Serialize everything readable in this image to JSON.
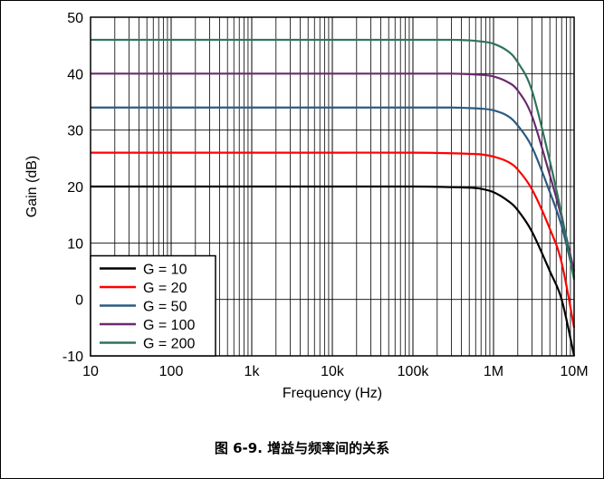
{
  "caption": "图 6-9. 增益与频率间的关系",
  "chart_data": {
    "type": "line",
    "xlabel": "Frequency (Hz)",
    "ylabel": "Gain (dB)",
    "x_scale": "log",
    "xlim": [
      10,
      10000000
    ],
    "ylim": [
      -10,
      50
    ],
    "x_ticks": [
      10,
      100,
      1000,
      10000,
      100000,
      1000000,
      10000000
    ],
    "x_tick_labels": [
      "10",
      "100",
      "1k",
      "10k",
      "100k",
      "1M",
      "10M"
    ],
    "y_ticks": [
      -10,
      0,
      10,
      20,
      30,
      40,
      50
    ],
    "y_tick_labels": [
      "-10",
      "0",
      "10",
      "20",
      "30",
      "40",
      "50"
    ],
    "grid": true,
    "legend_position": "bottom-left",
    "series": [
      {
        "name": "G = 10",
        "color": "#000000",
        "x": [
          10,
          100,
          1000,
          10000,
          100000,
          300000,
          500000,
          700000,
          1000000,
          1500000,
          2000000,
          3000000,
          5000000,
          7000000,
          10000000
        ],
        "y": [
          20,
          20,
          20,
          20,
          20,
          19.9,
          19.8,
          19.6,
          19,
          17.5,
          15.8,
          12,
          5,
          0,
          -10
        ]
      },
      {
        "name": "G = 20",
        "color": "#ff0000",
        "x": [
          10,
          100,
          1000,
          10000,
          100000,
          300000,
          500000,
          700000,
          1000000,
          1500000,
          2000000,
          3000000,
          5000000,
          7000000,
          10000000
        ],
        "y": [
          26,
          26,
          26,
          26,
          26,
          25.9,
          25.8,
          25.7,
          25.3,
          24.4,
          23,
          19.5,
          12.5,
          6.5,
          -5
        ]
      },
      {
        "name": "G = 50",
        "color": "#2c5b82",
        "x": [
          10,
          100,
          1000,
          10000,
          100000,
          300000,
          500000,
          700000,
          1000000,
          1500000,
          2000000,
          3000000,
          5000000,
          7000000,
          10000000
        ],
        "y": [
          34,
          34,
          34,
          34,
          34,
          34,
          33.9,
          33.8,
          33.5,
          32.5,
          30.8,
          27,
          19,
          13,
          4
        ]
      },
      {
        "name": "G = 100",
        "color": "#6b2a6e",
        "x": [
          10,
          100,
          1000,
          10000,
          100000,
          300000,
          500000,
          700000,
          1000000,
          1500000,
          2000000,
          3000000,
          5000000,
          7000000,
          10000000
        ],
        "y": [
          40,
          40,
          40,
          40,
          40,
          40,
          39.9,
          39.8,
          39.5,
          38.5,
          37,
          32.5,
          22,
          14.5,
          5
        ]
      },
      {
        "name": "G = 200",
        "color": "#2e7459",
        "x": [
          10,
          100,
          1000,
          10000,
          100000,
          300000,
          500000,
          700000,
          1000000,
          1500000,
          2000000,
          3000000,
          5000000,
          7000000,
          10000000
        ],
        "y": [
          46,
          46,
          46,
          46,
          46,
          46,
          45.9,
          45.7,
          45.3,
          44,
          42,
          37,
          24.5,
          15,
          3.5
        ]
      }
    ]
  }
}
